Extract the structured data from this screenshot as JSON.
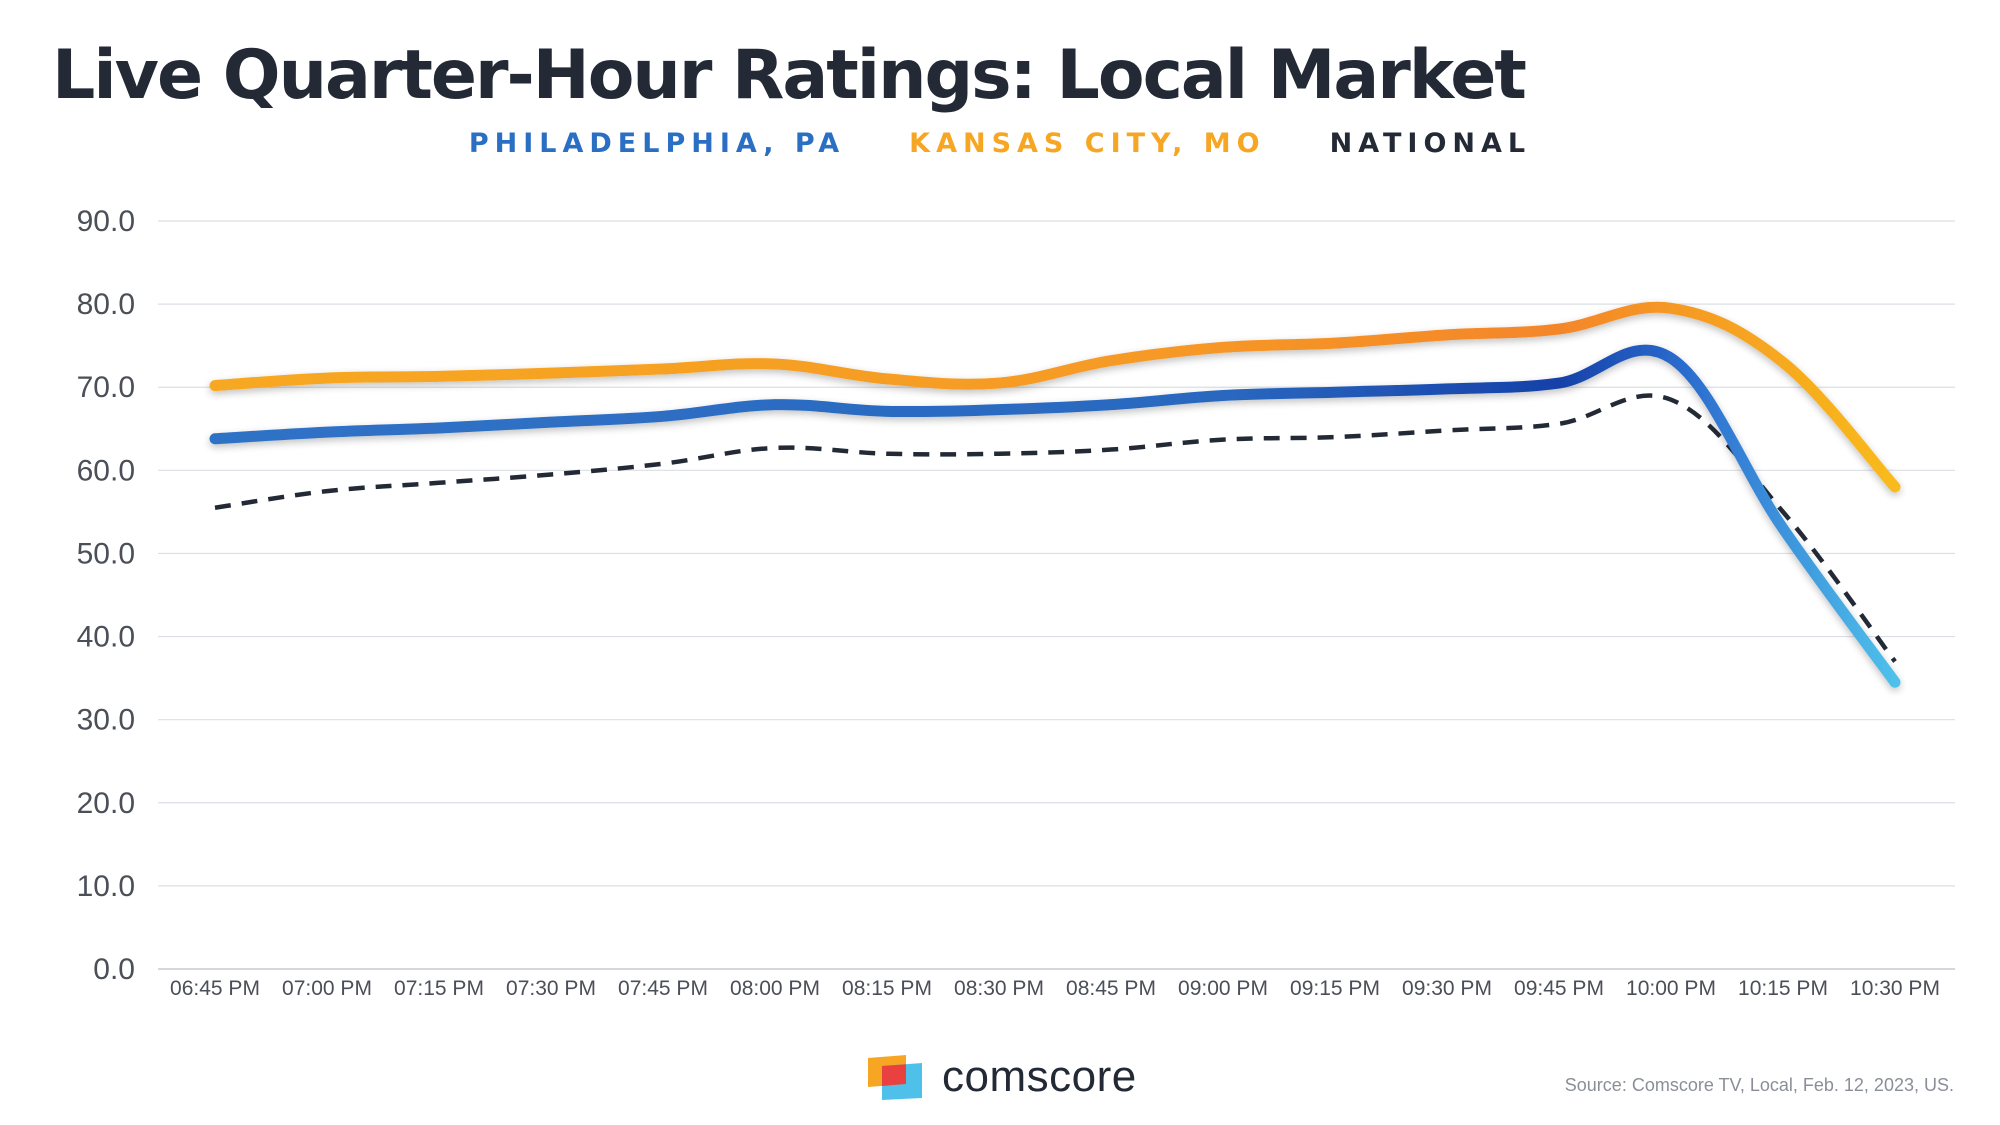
{
  "title": "Live Quarter-Hour Ratings: Local Market",
  "source": "Source: Comscore TV, Local, Feb. 12, 2023, US.",
  "brand": {
    "name": "comscore"
  },
  "chart_data": {
    "type": "line",
    "title": "Live Quarter-Hour Ratings: Local Market",
    "categories": [
      "06:45 PM",
      "07:00 PM",
      "07:15 PM",
      "07:30 PM",
      "07:45 PM",
      "08:00 PM",
      "08:15 PM",
      "08:30 PM",
      "08:45 PM",
      "09:00 PM",
      "09:15 PM",
      "09:30 PM",
      "09:45 PM",
      "10:00 PM",
      "10:15 PM",
      "10:30 PM"
    ],
    "ylim": [
      0,
      90
    ],
    "yticks": [
      "0.0",
      "10.0",
      "20.0",
      "30.0",
      "40.0",
      "50.0",
      "60.0",
      "70.0",
      "80.0",
      "90.0"
    ],
    "grid": true,
    "legend": "top-center",
    "series": [
      {
        "name": "PHILADELPHIA, PA",
        "color": "#2b6fc4",
        "style": "solid",
        "values": [
          63.8,
          64.6,
          65.1,
          65.8,
          66.5,
          67.9,
          67.1,
          67.3,
          67.9,
          69.0,
          69.4,
          69.8,
          70.5,
          73.5,
          53.0,
          34.5
        ]
      },
      {
        "name": "KANSAS CITY, MO",
        "color": "#f6a623",
        "style": "solid",
        "values": [
          70.2,
          71.1,
          71.3,
          71.7,
          72.2,
          72.8,
          71.0,
          70.5,
          73.2,
          74.8,
          75.3,
          76.3,
          77.0,
          79.5,
          73.0,
          58.0
        ]
      },
      {
        "name": "NATIONAL",
        "color": "#232a36",
        "style": "dashed",
        "values": [
          55.5,
          57.5,
          58.5,
          59.5,
          60.8,
          62.7,
          62.0,
          62.0,
          62.5,
          63.7,
          64.0,
          64.8,
          65.6,
          68.5,
          55.0,
          37.0
        ]
      }
    ]
  }
}
